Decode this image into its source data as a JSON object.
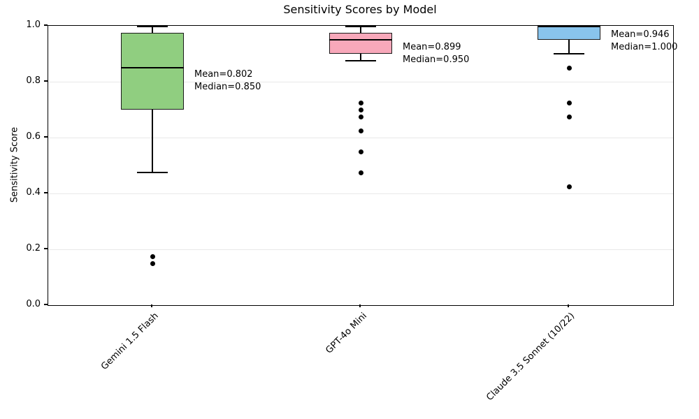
{
  "chart_data": {
    "type": "boxplot",
    "title": "Sensitivity Scores by Model",
    "xlabel": "",
    "ylabel": "Sensitivity Score",
    "ylim": [
      0.0,
      1.0
    ],
    "yticks": [
      0.0,
      0.2,
      0.4,
      0.6,
      0.8,
      1.0
    ],
    "ytick_labels": [
      "0.0",
      "0.2",
      "0.4",
      "0.6",
      "0.8",
      "1.0"
    ],
    "grid": "horizontal-gridlines-on",
    "legend": "none",
    "categories": [
      "Gemini 1.5 Flash",
      "GPT-4o Mini",
      "Claude 3.5 Sonnet (10/22)"
    ],
    "series": [
      {
        "label": "Gemini 1.5 Flash",
        "box_color": "#90CE80",
        "whisker_low": 0.475,
        "q1": 0.7,
        "median": 0.85,
        "q3": 0.975,
        "whisker_high": 1.0,
        "mean": 0.802,
        "outliers": [
          0.175,
          0.15
        ],
        "annotation_lines": [
          "Mean=0.802",
          "Median=0.850"
        ]
      },
      {
        "label": "GPT-4o Mini",
        "box_color": "#F8A8BA",
        "whisker_low": 0.875,
        "q1": 0.9,
        "median": 0.95,
        "q3": 0.975,
        "whisker_high": 1.0,
        "mean": 0.899,
        "outliers": [
          0.725,
          0.7,
          0.675,
          0.625,
          0.55,
          0.475
        ],
        "annotation_lines": [
          "Mean=0.899",
          "Median=0.950"
        ]
      },
      {
        "label": "Claude 3.5 Sonnet (10/22)",
        "box_color": "#89C4EC",
        "whisker_low": 0.9,
        "q1": 0.95,
        "median": 1.0,
        "q3": 1.0,
        "whisker_high": 1.0,
        "mean": 0.946,
        "outliers": [
          0.85,
          0.725,
          0.675,
          0.425
        ],
        "annotation_lines": [
          "Mean=0.946",
          "Median=1.000"
        ]
      }
    ],
    "style": {
      "edge_color": "#1a1a1a",
      "median_color": "#000000",
      "flier_color": "#000000",
      "grid_color": "#e8e8e8",
      "spine_color": "#000000",
      "background": "#ffffff"
    }
  }
}
